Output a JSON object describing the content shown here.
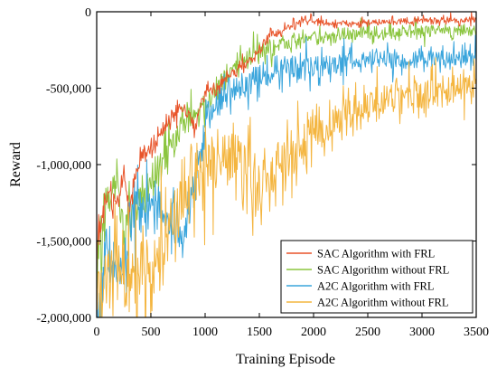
{
  "chart_data": {
    "type": "line",
    "title": "",
    "xlabel": "Training Episode",
    "ylabel": "Reward",
    "xlim": [
      0,
      3500
    ],
    "ylim": [
      -2000000,
      0
    ],
    "x_ticks": [
      0,
      500,
      1000,
      1500,
      2000,
      2500,
      3000,
      3500
    ],
    "x_tick_labels": [
      "0",
      "500",
      "1000",
      "1500",
      "2000",
      "2500",
      "3000",
      "3500"
    ],
    "y_ticks": [
      0,
      -500000,
      -1000000,
      -1500000,
      -2000000
    ],
    "y_tick_labels": [
      "0",
      "-500,000",
      "-1,000,000",
      "-1,500,000",
      "-2,000,000"
    ],
    "grid": false,
    "legend_position": "bottom-right",
    "draw_order": [
      1,
      2,
      0,
      3
    ],
    "series": [
      {
        "name": "SAC Algorithm with FRL",
        "color": "#e8542a",
        "x": [
          0,
          100,
          200,
          250,
          300,
          400,
          500,
          600,
          700,
          800,
          900,
          1000,
          1100,
          1200,
          1300,
          1400,
          1500,
          1600,
          1700,
          1800,
          1900,
          2000,
          2200,
          2400,
          2600,
          2800,
          3000,
          3200,
          3400,
          3500
        ],
        "y": [
          -1500000,
          -1180000,
          -1250000,
          -1050000,
          -1300000,
          -950000,
          -900000,
          -780000,
          -680000,
          -620000,
          -760000,
          -520000,
          -500000,
          -430000,
          -380000,
          -320000,
          -260000,
          -150000,
          -120000,
          -90000,
          -70000,
          -60000,
          -80000,
          -75000,
          -70000,
          -65000,
          -60000,
          -60000,
          -55000,
          -50000
        ],
        "noise": [
          120000,
          80000,
          70000,
          70000,
          60000,
          60000,
          55000,
          50000,
          50000,
          45000,
          45000,
          40000,
          40000,
          35000,
          35000,
          30000,
          30000,
          25000,
          25000,
          22000,
          22000,
          20000,
          20000,
          20000,
          20000,
          18000,
          18000,
          18000,
          18000,
          18000
        ]
      },
      {
        "name": "SAC Algorithm without FRL",
        "color": "#8bc53f",
        "x": [
          0,
          50,
          100,
          150,
          200,
          250,
          300,
          400,
          500,
          600,
          700,
          800,
          900,
          1000,
          1100,
          1200,
          1300,
          1400,
          1500,
          1600,
          1700,
          1800,
          1900,
          2000,
          2200,
          2400,
          2600,
          2800,
          3000,
          3200,
          3400,
          3500
        ],
        "y": [
          -1700000,
          -1400000,
          -1250000,
          -1150000,
          -1050000,
          -1500000,
          -1300000,
          -1200000,
          -1100000,
          -1000000,
          -850000,
          -700000,
          -650000,
          -600000,
          -500000,
          -400000,
          -350000,
          -300000,
          -270000,
          -250000,
          -220000,
          -200000,
          -180000,
          -170000,
          -160000,
          -150000,
          -140000,
          -130000,
          -130000,
          -125000,
          -120000,
          -120000
        ],
        "noise": [
          200000,
          180000,
          160000,
          150000,
          140000,
          140000,
          130000,
          110000,
          110000,
          100000,
          90000,
          85000,
          80000,
          75000,
          70000,
          65000,
          60000,
          55000,
          55000,
          50000,
          50000,
          48000,
          45000,
          45000,
          42000,
          40000,
          40000,
          38000,
          38000,
          36000,
          35000,
          35000
        ]
      },
      {
        "name": "A2C Algorithm with FRL",
        "color": "#3aa5dc",
        "x": [
          0,
          100,
          200,
          250,
          300,
          350,
          400,
          500,
          600,
          700,
          800,
          900,
          1000,
          1100,
          1200,
          1300,
          1400,
          1500,
          1600,
          1700,
          1800,
          1900,
          2000,
          2200,
          2400,
          2600,
          2800,
          3000,
          3200,
          3400,
          3500
        ],
        "y": [
          -1900000,
          -1550000,
          -1650000,
          -1800000,
          -1450000,
          -1250000,
          -1350000,
          -1250000,
          -1300000,
          -1400000,
          -1500000,
          -1150000,
          -750000,
          -600000,
          -550000,
          -500000,
          -450000,
          -420000,
          -400000,
          -380000,
          -370000,
          -360000,
          -350000,
          -340000,
          -330000,
          -320000,
          -320000,
          -310000,
          -300000,
          -300000,
          -290000
        ],
        "noise": [
          220000,
          180000,
          170000,
          160000,
          150000,
          150000,
          140000,
          130000,
          130000,
          130000,
          130000,
          120000,
          110000,
          100000,
          95000,
          90000,
          85000,
          80000,
          80000,
          75000,
          75000,
          70000,
          70000,
          65000,
          65000,
          60000,
          60000,
          60000,
          58000,
          58000,
          55000
        ]
      },
      {
        "name": "A2C Algorithm without FRL",
        "color": "#f4b53f",
        "x": [
          0,
          100,
          200,
          300,
          400,
          500,
          600,
          700,
          800,
          900,
          1000,
          1100,
          1200,
          1300,
          1400,
          1500,
          1600,
          1700,
          1800,
          1900,
          2000,
          2200,
          2400,
          2600,
          2800,
          3000,
          3200,
          3400,
          3500
        ],
        "y": [
          -1800000,
          -1700000,
          -1650000,
          -1750000,
          -1800000,
          -1700000,
          -1550000,
          -1350000,
          -1200000,
          -1100000,
          -1000000,
          -950000,
          -900000,
          -950000,
          -1050000,
          -1200000,
          -1100000,
          -1000000,
          -900000,
          -850000,
          -800000,
          -720000,
          -650000,
          -600000,
          -560000,
          -540000,
          -520000,
          -500000,
          -480000
        ],
        "noise": [
          220000,
          220000,
          220000,
          220000,
          220000,
          220000,
          220000,
          230000,
          230000,
          220000,
          220000,
          210000,
          200000,
          200000,
          200000,
          200000,
          190000,
          180000,
          170000,
          160000,
          150000,
          140000,
          130000,
          120000,
          110000,
          100000,
          95000,
          90000,
          90000
        ]
      }
    ]
  }
}
